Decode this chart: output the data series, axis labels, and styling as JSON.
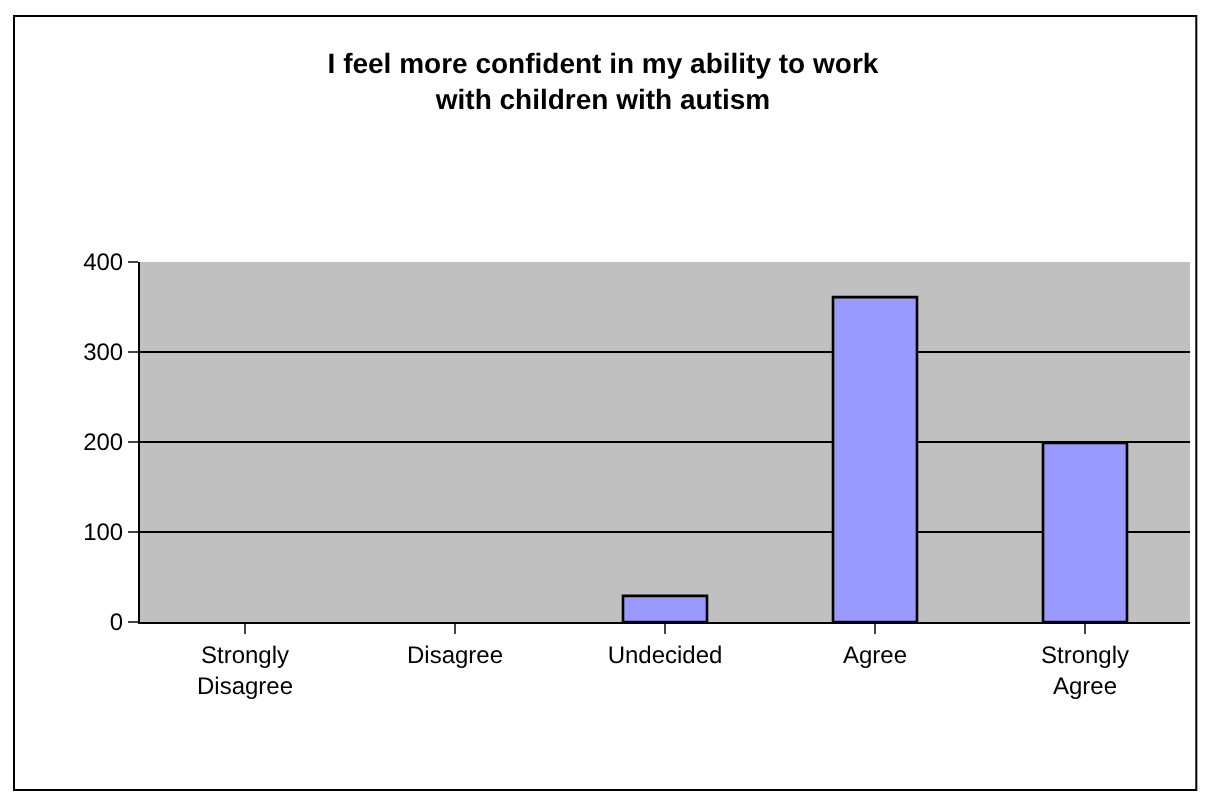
{
  "chart_data": {
    "type": "bar",
    "title": "I feel more confident in my ability to work with children with autism",
    "categories": [
      "Strongly Disagree",
      "Disagree",
      "Undecided",
      "Agree",
      "Strongly Agree"
    ],
    "series": [
      {
        "color": "#9999ff",
        "values": [
          0,
          0,
          29,
          361,
          199
        ]
      }
    ],
    "ylim": [
      0,
      400
    ],
    "yticks": [
      0,
      100,
      200,
      300,
      400
    ],
    "grid": "y",
    "legend": false
  }
}
